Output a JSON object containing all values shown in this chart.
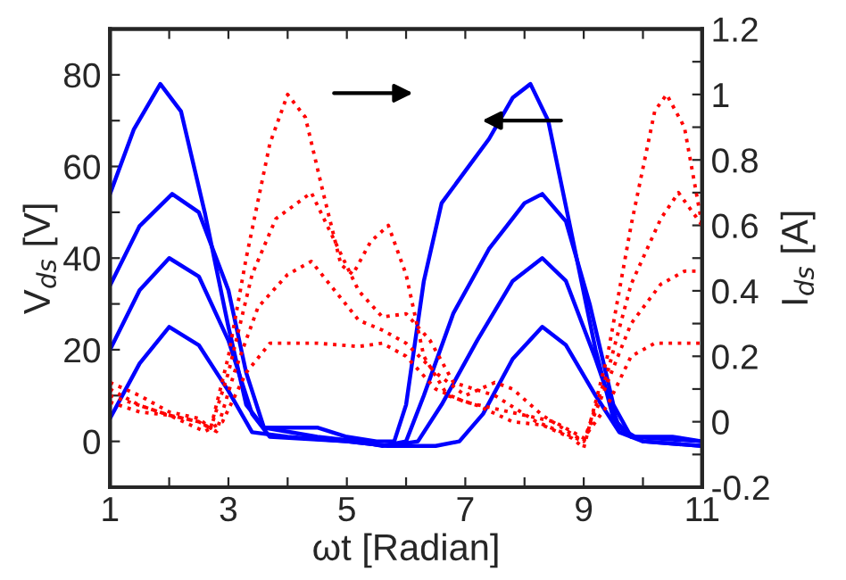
{
  "chart_data": {
    "type": "line",
    "xlabel": "ωt [Radian]",
    "ylabel": "V$_{ds}$ [V]",
    "y2label": "I$_{ds}$ [A]",
    "xlim": [
      1,
      11
    ],
    "xticks": [
      1,
      {
        "value": 2,
        "label": null
      },
      3,
      {
        "value": 4,
        "label": null
      },
      5,
      {
        "value": 6,
        "label": null
      },
      7,
      {
        "value": 8,
        "label": null
      },
      9,
      {
        "value": 10,
        "label": null
      },
      11
    ],
    "ylim": [
      -10,
      90
    ],
    "yticks": [
      0,
      {
        "value": 10,
        "label": null
      },
      20,
      {
        "value": 30,
        "label": null
      },
      40,
      {
        "value": 50,
        "label": null
      },
      60,
      {
        "value": 70,
        "label": null
      },
      80
    ],
    "y2lim": [
      -0.2,
      1.2
    ],
    "y2ticks": [
      -0.2,
      {
        "value": -0.1,
        "label": null
      },
      0,
      {
        "value": 0.1,
        "label": null
      },
      0.2,
      {
        "value": 0.3,
        "label": null
      },
      0.4,
      {
        "value": 0.5,
        "label": null
      },
      0.6,
      {
        "value": 0.7,
        "label": null
      },
      0.8,
      {
        "value": 0.9,
        "label": null
      },
      1,
      {
        "value": 1.1,
        "label": null
      },
      1.2
    ],
    "grid": false,
    "legend": false,
    "marker": "none",
    "series": [
      {
        "color": "#0000ff",
        "line_style": "solid",
        "x": [
          1,
          1.4,
          1.85,
          2.2,
          2.6,
          3.0,
          3.3,
          3.6,
          4.5,
          5,
          5.5,
          5.8,
          6.0,
          6.3,
          6.6,
          7.0,
          7.4,
          7.8,
          8.1,
          8.4,
          8.8,
          9.2,
          9.5,
          9.8,
          10.5,
          11
        ],
        "values": [
          54,
          68,
          78,
          72,
          50,
          25,
          8,
          3,
          3,
          1,
          0,
          0,
          8,
          35,
          52,
          59,
          66,
          75,
          78,
          70,
          45,
          20,
          5,
          1,
          1,
          0
        ]
      },
      {
        "color": "#0000ff",
        "line_style": "solid",
        "x": [
          1,
          1.5,
          2.05,
          2.5,
          3.0,
          3.3,
          3.6,
          4.5,
          5.2,
          5.6,
          6.0,
          6.3,
          6.8,
          7.4,
          8.0,
          8.3,
          8.7,
          9.1,
          9.5,
          9.8,
          11
        ],
        "values": [
          34,
          47,
          54,
          50,
          33,
          15,
          3,
          1,
          0,
          -1,
          0,
          10,
          28,
          42,
          52,
          54,
          48,
          30,
          8,
          1,
          0
        ]
      },
      {
        "color": "#0000ff",
        "line_style": "solid",
        "x": [
          1,
          1.5,
          2.0,
          2.5,
          3.0,
          3.4,
          3.7,
          5,
          5.7,
          6.2,
          6.6,
          7.2,
          7.8,
          8.3,
          8.7,
          9.2,
          9.6,
          10,
          11
        ],
        "values": [
          20,
          33,
          40,
          36,
          22,
          6,
          1,
          0,
          -1,
          0,
          8,
          22,
          35,
          40,
          35,
          18,
          3,
          0,
          -1
        ]
      },
      {
        "color": "#0000ff",
        "line_style": "solid",
        "x": [
          1,
          1.5,
          2.0,
          2.5,
          3.0,
          3.4,
          4,
          5,
          5.7,
          6.5,
          6.9,
          7.3,
          7.8,
          8.3,
          8.7,
          9.2,
          9.6,
          10,
          11
        ],
        "values": [
          5,
          17,
          25,
          21,
          11,
          2,
          1,
          0,
          -1,
          -1,
          0,
          6,
          18,
          25,
          21,
          10,
          2,
          0,
          -1
        ]
      },
      {
        "color": "#ff0000",
        "line_style": "dotted",
        "axis": "y2",
        "x": [
          1,
          1.5,
          2,
          2.5,
          2.7,
          3.0,
          3.3,
          3.7,
          4.0,
          4.3,
          4.6,
          4.9,
          5.1,
          5.4,
          5.7,
          6.0,
          6.3,
          6.7,
          7.2,
          7.8,
          8.3,
          8.8,
          9.0,
          9.4,
          9.8,
          10.2,
          10.4,
          10.7,
          11
        ],
        "values": [
          0.1,
          0.05,
          0.02,
          0,
          -0.02,
          0.2,
          0.5,
          0.85,
          1.0,
          0.93,
          0.7,
          0.48,
          0.45,
          0.55,
          0.6,
          0.45,
          0.2,
          0.08,
          0.05,
          0.0,
          -0.01,
          -0.05,
          -0.08,
          0.2,
          0.6,
          0.95,
          1.0,
          0.9,
          0.6
        ]
      },
      {
        "color": "#ff0000",
        "line_style": "dotted",
        "axis": "y2",
        "x": [
          1,
          1.5,
          2,
          2.5,
          2.7,
          3.0,
          3.4,
          3.8,
          4.4,
          4.8,
          5.2,
          5.6,
          6.0,
          6.4,
          6.8,
          7.5,
          8.2,
          9.0,
          9.4,
          9.8,
          10.3,
          10.6,
          11
        ],
        "values": [
          0.12,
          0.08,
          0.03,
          0.01,
          -0.02,
          0.15,
          0.45,
          0.62,
          0.7,
          0.55,
          0.4,
          0.32,
          0.33,
          0.25,
          0.12,
          0.08,
          0.0,
          -0.06,
          0.15,
          0.42,
          0.62,
          0.7,
          0.6
        ]
      },
      {
        "color": "#ff0000",
        "line_style": "dotted",
        "axis": "y2",
        "x": [
          1,
          1.5,
          2,
          2.5,
          2.8,
          3.1,
          3.5,
          4.0,
          4.4,
          4.8,
          5.2,
          5.6,
          6.0,
          6.5,
          7.0,
          7.5,
          7.8,
          8.3,
          9.0,
          9.4,
          9.8,
          10.3,
          10.7,
          11
        ],
        "values": [
          0.08,
          0.05,
          0.02,
          0,
          -0.03,
          0.15,
          0.35,
          0.45,
          0.49,
          0.4,
          0.31,
          0.28,
          0.24,
          0.15,
          0.08,
          0.12,
          0.1,
          0.02,
          -0.06,
          0.12,
          0.3,
          0.42,
          0.46,
          0.46
        ]
      },
      {
        "color": "#ff0000",
        "line_style": "dotted",
        "axis": "y2",
        "x": [
          1,
          1.5,
          2,
          2.6,
          2.9,
          3.3,
          3.7,
          4.5,
          5.2,
          5.6,
          6.0,
          6.5,
          7.0,
          7.5,
          8.0,
          8.5,
          9.0,
          9.4,
          9.8,
          10.2,
          11
        ],
        "values": [
          0.06,
          0.03,
          0.02,
          -0.03,
          0.0,
          0.15,
          0.24,
          0.24,
          0.23,
          0.24,
          0.2,
          0.1,
          0.06,
          0.04,
          0.02,
          0.0,
          -0.05,
          0.05,
          0.2,
          0.24,
          0.24
        ]
      }
    ]
  }
}
